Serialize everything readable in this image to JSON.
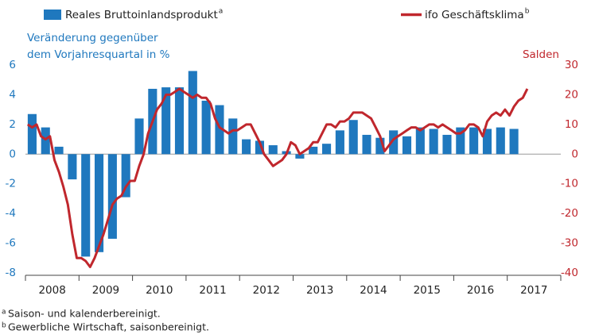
{
  "chart_data": {
    "type": "bar_line",
    "y_label": [
      "Veränderung gegenüber",
      "dem Vorjahresquartal in %"
    ],
    "y2_label": "Salden",
    "xlim": [
      2008,
      2018
    ],
    "xticks": [
      2008,
      2009,
      2010,
      2011,
      2012,
      2013,
      2014,
      2015,
      2016,
      2017
    ],
    "ylim": [
      -8,
      6
    ],
    "yticks": [
      -8,
      -6,
      -4,
      -2,
      0,
      2,
      4,
      6
    ],
    "y2lim": [
      -40,
      30
    ],
    "y2ticks": [
      -40,
      -30,
      -20,
      -10,
      0,
      10,
      20,
      30
    ],
    "series": [
      {
        "name": "Reales Bruttoinlandsprodukt",
        "marker": "a",
        "type": "bar",
        "color": "#1f78be",
        "frequency": "quarter",
        "values": [
          2.7,
          1.8,
          0.5,
          -1.7,
          -6.9,
          -6.6,
          -5.7,
          -2.9,
          2.4,
          4.4,
          4.5,
          4.5,
          5.6,
          3.6,
          3.3,
          2.4,
          1.0,
          0.9,
          0.6,
          0.2,
          -0.3,
          0.5,
          0.7,
          1.6,
          2.3,
          1.3,
          1.1,
          1.6,
          1.2,
          1.8,
          1.7,
          1.3,
          1.8,
          1.8,
          1.7,
          1.8,
          1.7
        ]
      },
      {
        "name": "ifo Geschäftsklima",
        "marker": "b",
        "type": "line",
        "axis": "y2",
        "color": "#c0272d",
        "frequency": "month",
        "values": [
          10,
          9,
          10,
          6,
          5,
          6,
          -2,
          -6,
          -11,
          -17,
          -27,
          -35,
          -35,
          -36,
          -38,
          -35,
          -31,
          -27,
          -22,
          -17,
          -15,
          -14,
          -11,
          -9,
          -9,
          -4,
          0,
          7,
          11,
          15,
          17,
          20,
          20,
          21,
          22,
          21,
          20,
          19,
          20,
          19,
          19,
          17,
          12,
          9,
          8,
          7,
          8,
          8,
          9,
          10,
          10,
          7,
          4,
          0,
          -2,
          -4,
          -3,
          -2,
          0,
          4,
          3,
          0,
          1,
          2,
          4,
          4,
          7,
          10,
          10,
          9,
          11,
          11,
          12,
          14,
          14,
          14,
          13,
          12,
          9,
          6,
          1,
          3,
          5,
          6,
          7,
          8,
          9,
          9,
          8,
          9,
          10,
          10,
          9,
          10,
          9,
          8,
          7,
          7,
          8,
          10,
          10,
          9,
          6,
          11,
          13,
          14,
          13,
          15,
          13,
          16,
          18,
          19,
          22
        ]
      }
    ],
    "footnotes": [
      {
        "marker": "a",
        "text": "Saison- und kalenderbereinigt."
      },
      {
        "marker": "b",
        "text": "Gewerbliche Wirtschaft, saisonbereinigt."
      }
    ]
  }
}
